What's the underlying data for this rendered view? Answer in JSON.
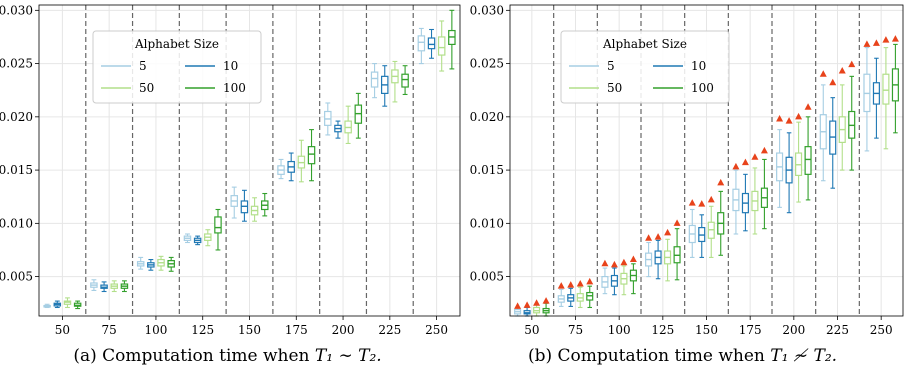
{
  "colors": {
    "size_5": "#a6cee3",
    "size_10": "#1f78b4",
    "size_50": "#b2df8a",
    "size_100": "#33a02c",
    "marker": "#e8431b",
    "divider": "#666666",
    "grid": "#e6e6e6"
  },
  "captions": [
    {
      "prefix": "(a) Computation time when ",
      "math": "T₁ ∼ T₂."
    },
    {
      "prefix": "(b) Computation time when ",
      "math": "T₁ ≁ T₂."
    }
  ],
  "chart_data": [
    {
      "type": "box",
      "title": "",
      "xlabel": "",
      "ylabel": "",
      "categories": [
        "50",
        "75",
        "100",
        "125",
        "150",
        "175",
        "200",
        "225",
        "250"
      ],
      "ylim": [
        0.0013,
        0.0305
      ],
      "yticks": [
        "0.005",
        "0.010",
        "0.015",
        "0.020",
        "0.025",
        "0.030"
      ],
      "legend": {
        "title": "Alphabet Size",
        "placement": "upper-left",
        "entries": [
          "5",
          "10",
          "50",
          "100"
        ]
      },
      "grid": true,
      "series": [
        {
          "name": "5",
          "color": "#a6cee3",
          "boxes": [
            {
              "whislo": 0.0021,
              "q1": 0.00215,
              "med": 0.0022,
              "q3": 0.00228,
              "whishi": 0.0024
            },
            {
              "whislo": 0.0037,
              "q1": 0.004,
              "med": 0.0042,
              "q3": 0.0044,
              "whishi": 0.0047
            },
            {
              "whislo": 0.0057,
              "q1": 0.006,
              "med": 0.0062,
              "q3": 0.0064,
              "whishi": 0.0068
            },
            {
              "whislo": 0.0082,
              "q1": 0.0084,
              "med": 0.0086,
              "q3": 0.0088,
              "whishi": 0.009
            },
            {
              "whislo": 0.0105,
              "q1": 0.0116,
              "med": 0.0121,
              "q3": 0.0126,
              "whishi": 0.0134
            },
            {
              "whislo": 0.0142,
              "q1": 0.0146,
              "med": 0.015,
              "q3": 0.0154,
              "whishi": 0.016
            },
            {
              "whislo": 0.0183,
              "q1": 0.0192,
              "med": 0.0198,
              "q3": 0.0205,
              "whishi": 0.0213
            },
            {
              "whislo": 0.0218,
              "q1": 0.0228,
              "med": 0.0236,
              "q3": 0.0242,
              "whishi": 0.025
            },
            {
              "whislo": 0.025,
              "q1": 0.0262,
              "med": 0.027,
              "q3": 0.0276,
              "whishi": 0.0283
            }
          ]
        },
        {
          "name": "10",
          "color": "#1f78b4",
          "boxes": [
            {
              "whislo": 0.0021,
              "q1": 0.00225,
              "med": 0.0024,
              "q3": 0.0025,
              "whishi": 0.0027
            },
            {
              "whislo": 0.0036,
              "q1": 0.0039,
              "med": 0.004,
              "q3": 0.0042,
              "whishi": 0.0045
            },
            {
              "whislo": 0.0056,
              "q1": 0.0059,
              "med": 0.0061,
              "q3": 0.0063,
              "whishi": 0.0066
            },
            {
              "whislo": 0.008,
              "q1": 0.0082,
              "med": 0.0084,
              "q3": 0.0086,
              "whishi": 0.0088
            },
            {
              "whislo": 0.0102,
              "q1": 0.011,
              "med": 0.0116,
              "q3": 0.0121,
              "whishi": 0.0131
            },
            {
              "whislo": 0.014,
              "q1": 0.0148,
              "med": 0.0153,
              "q3": 0.0158,
              "whishi": 0.0166
            },
            {
              "whislo": 0.018,
              "q1": 0.0186,
              "med": 0.0189,
              "q3": 0.0192,
              "whishi": 0.0196
            },
            {
              "whislo": 0.021,
              "q1": 0.0222,
              "med": 0.023,
              "q3": 0.0238,
              "whishi": 0.0248
            },
            {
              "whislo": 0.0255,
              "q1": 0.0264,
              "med": 0.0268,
              "q3": 0.0274,
              "whishi": 0.0282
            }
          ]
        },
        {
          "name": "50",
          "color": "#b2df8a",
          "boxes": [
            {
              "whislo": 0.0021,
              "q1": 0.0024,
              "med": 0.0026,
              "q3": 0.0027,
              "whishi": 0.003
            },
            {
              "whislo": 0.0036,
              "q1": 0.0039,
              "med": 0.0041,
              "q3": 0.0043,
              "whishi": 0.0046
            },
            {
              "whislo": 0.0056,
              "q1": 0.006,
              "med": 0.0063,
              "q3": 0.0066,
              "whishi": 0.0069
            },
            {
              "whislo": 0.0079,
              "q1": 0.0084,
              "med": 0.0087,
              "q3": 0.009,
              "whishi": 0.0094
            },
            {
              "whislo": 0.0102,
              "q1": 0.0108,
              "med": 0.0112,
              "q3": 0.0116,
              "whishi": 0.0124
            },
            {
              "whislo": 0.0139,
              "q1": 0.0152,
              "med": 0.0157,
              "q3": 0.0163,
              "whishi": 0.0178
            },
            {
              "whislo": 0.0175,
              "q1": 0.0185,
              "med": 0.019,
              "q3": 0.0196,
              "whishi": 0.021
            },
            {
              "whislo": 0.0214,
              "q1": 0.0232,
              "med": 0.0238,
              "q3": 0.0244,
              "whishi": 0.0252
            },
            {
              "whislo": 0.0243,
              "q1": 0.0258,
              "med": 0.0265,
              "q3": 0.0275,
              "whishi": 0.029
            }
          ]
        },
        {
          "name": "100",
          "color": "#33a02c",
          "boxes": [
            {
              "whislo": 0.002,
              "q1": 0.00222,
              "med": 0.0023,
              "q3": 0.0025,
              "whishi": 0.0027
            },
            {
              "whislo": 0.0036,
              "q1": 0.0039,
              "med": 0.0041,
              "q3": 0.0043,
              "whishi": 0.0046
            },
            {
              "whislo": 0.0055,
              "q1": 0.0059,
              "med": 0.0062,
              "q3": 0.0065,
              "whishi": 0.0068
            },
            {
              "whislo": 0.0075,
              "q1": 0.0091,
              "med": 0.0096,
              "q3": 0.0106,
              "whishi": 0.0113
            },
            {
              "whislo": 0.0107,
              "q1": 0.0113,
              "med": 0.0117,
              "q3": 0.0121,
              "whishi": 0.0128
            },
            {
              "whislo": 0.014,
              "q1": 0.0156,
              "med": 0.0165,
              "q3": 0.0172,
              "whishi": 0.0188
            },
            {
              "whislo": 0.018,
              "q1": 0.0194,
              "med": 0.0203,
              "q3": 0.0211,
              "whishi": 0.0222
            },
            {
              "whislo": 0.0221,
              "q1": 0.0228,
              "med": 0.0235,
              "q3": 0.024,
              "whishi": 0.0248
            },
            {
              "whislo": 0.0245,
              "q1": 0.0268,
              "med": 0.0275,
              "q3": 0.0281,
              "whishi": 0.03
            }
          ]
        }
      ]
    },
    {
      "type": "box",
      "title": "",
      "xlabel": "",
      "ylabel": "",
      "categories": [
        "50",
        "75",
        "100",
        "125",
        "150",
        "175",
        "200",
        "225",
        "250"
      ],
      "ylim": [
        0.0013,
        0.0305
      ],
      "yticks": [
        "0.005",
        "0.010",
        "0.015",
        "0.020",
        "0.025",
        "0.030"
      ],
      "legend": {
        "title": "Alphabet Size",
        "placement": "upper-left",
        "entries": [
          "5",
          "10",
          "50",
          "100"
        ]
      },
      "grid": true,
      "marker_color": "#e8431b",
      "series": [
        {
          "name": "5",
          "color": "#a6cee3",
          "marker": 0.0022,
          "boxes": [
            {
              "whislo": 0.0013,
              "q1": 0.0015,
              "med": 0.0017,
              "q3": 0.0019,
              "whishi": 0.0021,
              "marker": 0.0022
            },
            {
              "whislo": 0.0022,
              "q1": 0.0026,
              "med": 0.0029,
              "q3": 0.0032,
              "whishi": 0.0038,
              "marker": 0.0041
            },
            {
              "whislo": 0.0034,
              "q1": 0.004,
              "med": 0.0045,
              "q3": 0.005,
              "whishi": 0.0058,
              "marker": 0.0062
            },
            {
              "whislo": 0.005,
              "q1": 0.006,
              "med": 0.0066,
              "q3": 0.0072,
              "whishi": 0.0082,
              "marker": 0.0086
            },
            {
              "whislo": 0.0068,
              "q1": 0.0082,
              "med": 0.009,
              "q3": 0.0098,
              "whishi": 0.0113,
              "marker": 0.0119
            },
            {
              "whislo": 0.009,
              "q1": 0.0112,
              "med": 0.0122,
              "q3": 0.0132,
              "whishi": 0.015,
              "marker": 0.0153
            },
            {
              "whislo": 0.0115,
              "q1": 0.014,
              "med": 0.0153,
              "q3": 0.0166,
              "whishi": 0.0188,
              "marker": 0.0198
            },
            {
              "whislo": 0.014,
              "q1": 0.017,
              "med": 0.0186,
              "q3": 0.0202,
              "whishi": 0.023,
              "marker": 0.024
            },
            {
              "whislo": 0.0168,
              "q1": 0.0205,
              "med": 0.0222,
              "q3": 0.024,
              "whishi": 0.0265,
              "marker": 0.0268
            }
          ]
        },
        {
          "name": "10",
          "color": "#1f78b4",
          "boxes": [
            {
              "whislo": 0.0013,
              "q1": 0.0015,
              "med": 0.0016,
              "q3": 0.0018,
              "whishi": 0.0021,
              "marker": 0.0023
            },
            {
              "whislo": 0.0022,
              "q1": 0.0027,
              "med": 0.003,
              "q3": 0.0033,
              "whishi": 0.0039,
              "marker": 0.0042
            },
            {
              "whislo": 0.0033,
              "q1": 0.0041,
              "med": 0.0046,
              "q3": 0.0051,
              "whishi": 0.0058,
              "marker": 0.0061
            },
            {
              "whislo": 0.0048,
              "q1": 0.0062,
              "med": 0.0068,
              "q3": 0.0074,
              "whishi": 0.0084,
              "marker": 0.0087
            },
            {
              "whislo": 0.0068,
              "q1": 0.0083,
              "med": 0.0089,
              "q3": 0.0096,
              "whishi": 0.0108,
              "marker": 0.0118
            },
            {
              "whislo": 0.0093,
              "q1": 0.011,
              "med": 0.0119,
              "q3": 0.0128,
              "whishi": 0.0146,
              "marker": 0.0157
            },
            {
              "whislo": 0.011,
              "q1": 0.0138,
              "med": 0.015,
              "q3": 0.0162,
              "whishi": 0.0185,
              "marker": 0.0196
            },
            {
              "whislo": 0.0133,
              "q1": 0.0165,
              "med": 0.0181,
              "q3": 0.0196,
              "whishi": 0.0218,
              "marker": 0.0232
            },
            {
              "whislo": 0.018,
              "q1": 0.0212,
              "med": 0.0222,
              "q3": 0.0232,
              "whishi": 0.0255,
              "marker": 0.0269
            }
          ]
        },
        {
          "name": "50",
          "color": "#b2df8a",
          "boxes": [
            {
              "whislo": 0.0013,
              "q1": 0.0016,
              "med": 0.0018,
              "q3": 0.0021,
              "whishi": 0.0024,
              "marker": 0.0025
            },
            {
              "whislo": 0.0021,
              "q1": 0.0027,
              "med": 0.003,
              "q3": 0.0034,
              "whishi": 0.004,
              "marker": 0.0043
            },
            {
              "whislo": 0.0033,
              "q1": 0.0043,
              "med": 0.0048,
              "q3": 0.0053,
              "whishi": 0.006,
              "marker": 0.0063
            },
            {
              "whislo": 0.0046,
              "q1": 0.0062,
              "med": 0.0068,
              "q3": 0.0074,
              "whishi": 0.0085,
              "marker": 0.0091
            },
            {
              "whislo": 0.0068,
              "q1": 0.0086,
              "med": 0.0094,
              "q3": 0.0101,
              "whishi": 0.0116,
              "marker": 0.0122
            },
            {
              "whislo": 0.009,
              "q1": 0.0112,
              "med": 0.0121,
              "q3": 0.013,
              "whishi": 0.0152,
              "marker": 0.0162
            },
            {
              "whislo": 0.012,
              "q1": 0.0145,
              "med": 0.0155,
              "q3": 0.0166,
              "whishi": 0.0195,
              "marker": 0.02
            },
            {
              "whislo": 0.015,
              "q1": 0.0176,
              "med": 0.0188,
              "q3": 0.02,
              "whishi": 0.023,
              "marker": 0.0243
            },
            {
              "whislo": 0.017,
              "q1": 0.0212,
              "med": 0.0225,
              "q3": 0.024,
              "whishi": 0.0265,
              "marker": 0.0272
            }
          ]
        },
        {
          "name": "100",
          "color": "#33a02c",
          "boxes": [
            {
              "whislo": 0.0013,
              "q1": 0.0016,
              "med": 0.0018,
              "q3": 0.002,
              "whishi": 0.0025,
              "marker": 0.0027
            },
            {
              "whislo": 0.0021,
              "q1": 0.0028,
              "med": 0.0032,
              "q3": 0.0035,
              "whishi": 0.0041,
              "marker": 0.0045
            },
            {
              "whislo": 0.0034,
              "q1": 0.0046,
              "med": 0.0051,
              "q3": 0.0056,
              "whishi": 0.0062,
              "marker": 0.0066
            },
            {
              "whislo": 0.0047,
              "q1": 0.0063,
              "med": 0.007,
              "q3": 0.0078,
              "whishi": 0.0095,
              "marker": 0.01
            },
            {
              "whislo": 0.007,
              "q1": 0.009,
              "med": 0.01,
              "q3": 0.011,
              "whishi": 0.013,
              "marker": 0.0138
            },
            {
              "whislo": 0.0095,
              "q1": 0.0115,
              "med": 0.0124,
              "q3": 0.0133,
              "whishi": 0.016,
              "marker": 0.0168
            },
            {
              "whislo": 0.0122,
              "q1": 0.0146,
              "med": 0.016,
              "q3": 0.0172,
              "whishi": 0.02,
              "marker": 0.0209
            },
            {
              "whislo": 0.015,
              "q1": 0.018,
              "med": 0.0192,
              "q3": 0.0205,
              "whishi": 0.0238,
              "marker": 0.0249
            },
            {
              "whislo": 0.0185,
              "q1": 0.0215,
              "med": 0.023,
              "q3": 0.0245,
              "whishi": 0.0268,
              "marker": 0.0273
            }
          ]
        }
      ]
    }
  ]
}
